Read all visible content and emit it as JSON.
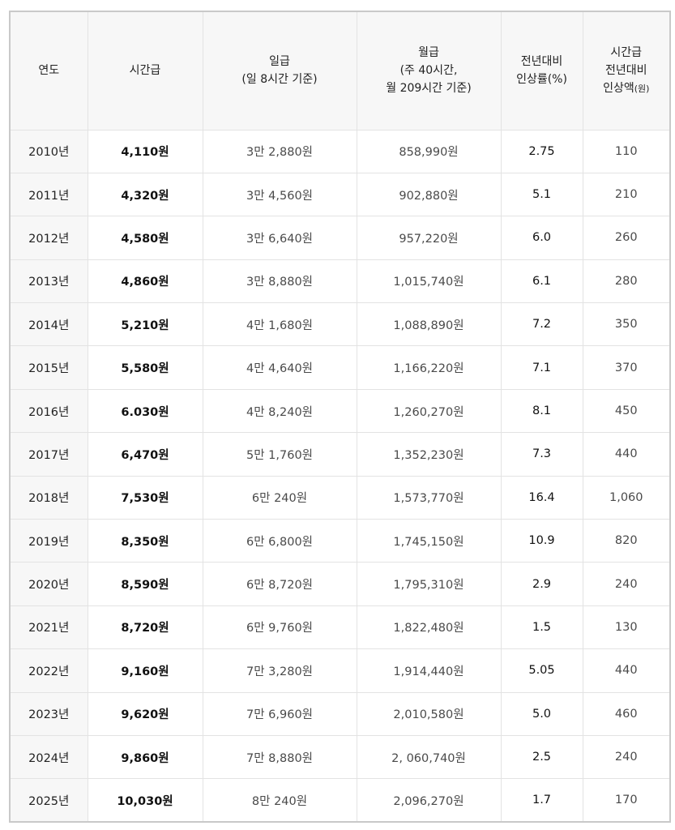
{
  "headers": {
    "year": "연도",
    "hourly": "시간급",
    "daily_line1": "일급",
    "daily_line2": "(일 8시간 기준)",
    "monthly_line1": "월급",
    "monthly_line2": "(주 40시간,",
    "monthly_line3": "월 209시간 기준)",
    "rate_line1": "전년대비",
    "rate_line2": "인상률(%)",
    "increase_line1": "시간급",
    "increase_line2": "전년대비",
    "increase_line3": "인상액",
    "increase_unit": "(원)"
  },
  "rows": [
    {
      "year": "2010년",
      "hourly": "4,110원",
      "daily": "3만 2,880원",
      "monthly": "858,990원",
      "rate": "2.75",
      "increase": "110"
    },
    {
      "year": "2011년",
      "hourly": "4,320원",
      "daily": "3만 4,560원",
      "monthly": "902,880원",
      "rate": "5.1",
      "increase": "210"
    },
    {
      "year": "2012년",
      "hourly": "4,580원",
      "daily": "3만 6,640원",
      "monthly": "957,220원",
      "rate": "6.0",
      "increase": "260"
    },
    {
      "year": "2013년",
      "hourly": "4,860원",
      "daily": "3만 8,880원",
      "monthly": "1,015,740원",
      "rate": "6.1",
      "increase": "280"
    },
    {
      "year": "2014년",
      "hourly": "5,210원",
      "daily": "4만 1,680원",
      "monthly": "1,088,890원",
      "rate": "7.2",
      "increase": "350"
    },
    {
      "year": "2015년",
      "hourly": "5,580원",
      "daily": "4만 4,640원",
      "monthly": "1,166,220원",
      "rate": "7.1",
      "increase": "370"
    },
    {
      "year": "2016년",
      "hourly": "6.030원",
      "daily": "4만 8,240원",
      "monthly": "1,260,270원",
      "rate": "8.1",
      "increase": "450"
    },
    {
      "year": "2017년",
      "hourly": "6,470원",
      "daily": "5만 1,760원",
      "monthly": "1,352,230원",
      "rate": "7.3",
      "increase": "440"
    },
    {
      "year": "2018년",
      "hourly": "7,530원",
      "daily": "6만 240원",
      "monthly": "1,573,770원",
      "rate": "16.4",
      "increase": "1,060"
    },
    {
      "year": "2019년",
      "hourly": "8,350원",
      "daily": "6만 6,800원",
      "monthly": "1,745,150원",
      "rate": "10.9",
      "increase": "820"
    },
    {
      "year": "2020년",
      "hourly": "8,590원",
      "daily": "6만 8,720원",
      "monthly": "1,795,310원",
      "rate": "2.9",
      "increase": "240"
    },
    {
      "year": "2021년",
      "hourly": "8,720원",
      "daily": "6만 9,760원",
      "monthly": "1,822,480원",
      "rate": "1.5",
      "increase": "130"
    },
    {
      "year": "2022년",
      "hourly": "9,160원",
      "daily": "7만 3,280원",
      "monthly": "1,914,440원",
      "rate": "5.05",
      "increase": "440"
    },
    {
      "year": "2023년",
      "hourly": "9,620원",
      "daily": "7만 6,960원",
      "monthly": "2,010,580원",
      "rate": "5.0",
      "increase": "460"
    },
    {
      "year": "2024년",
      "hourly": "9,860원",
      "daily": "7만 8,880원",
      "monthly": "2, 060,740원",
      "rate": "2.5",
      "increase": "240"
    },
    {
      "year": "2025년",
      "hourly": "10,030원",
      "daily": "8만 240원",
      "monthly": "2,096,270원",
      "rate": "1.7",
      "increase": "170"
    }
  ]
}
